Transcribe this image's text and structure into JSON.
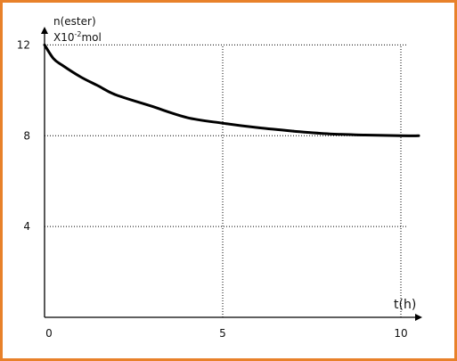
{
  "chart_data": {
    "type": "line",
    "ylabel_line1": "n(ester)",
    "ylabel_line2_prefix": "X10",
    "ylabel_line2_exponent": "-2",
    "ylabel_line2_suffix": "mol",
    "xlabel": "t(h)",
    "x_ticks": [
      {
        "value": 0,
        "label": "0"
      },
      {
        "value": 5,
        "label": "5"
      },
      {
        "value": 10,
        "label": "10"
      }
    ],
    "y_ticks": [
      {
        "value": 4,
        "label": "4"
      },
      {
        "value": 8,
        "label": "8"
      },
      {
        "value": 12,
        "label": "12"
      }
    ],
    "xlim": [
      0,
      10.7
    ],
    "ylim": [
      0,
      12.8
    ],
    "grid": "dotted",
    "series": [
      {
        "color": "#000000",
        "x": [
          0,
          0.25,
          0.5,
          1,
          1.5,
          2,
          3,
          4,
          5,
          6,
          7,
          8,
          9,
          10,
          10.5
        ],
        "y": [
          12,
          11.4,
          11.1,
          10.6,
          10.2,
          9.8,
          9.3,
          8.8,
          8.55,
          8.35,
          8.2,
          8.08,
          8.03,
          8.0,
          8.0
        ]
      }
    ]
  },
  "colors": {
    "frame": "#E8812A",
    "axis": "#000000",
    "grid": "#000000"
  }
}
